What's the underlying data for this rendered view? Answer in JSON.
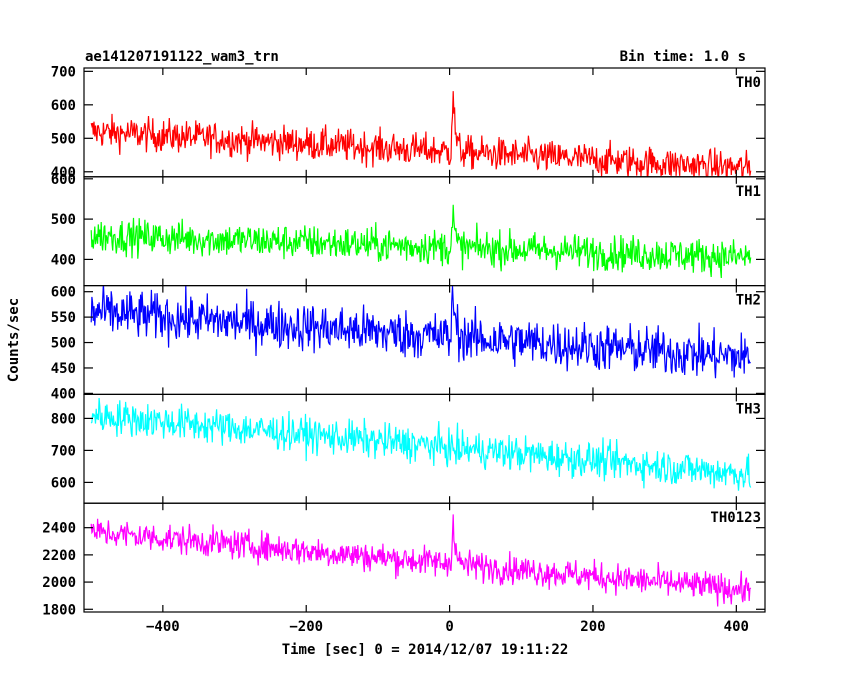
{
  "header": {
    "title": "ae141207191122_wam3_trn",
    "bin_time": "Bin time: 1.0 s"
  },
  "chart_data": {
    "type": "line",
    "title": "ae141207191122_wam3_trn",
    "subtitle": "Bin time: 1.0 s",
    "xlabel": "Time [sec] 0 = 2014/12/07 19:11:22",
    "ylabel": "Counts/sec",
    "xlim": [
      -510,
      440
    ],
    "x_ticks": [
      -400,
      -200,
      0,
      200,
      400
    ],
    "x_tick_labels": [
      "−400",
      "−200",
      "0",
      "200",
      "400"
    ],
    "x_range": [
      -500,
      420
    ],
    "grid": false,
    "panels": [
      {
        "name": "TH0",
        "color": "#ff0000",
        "ylim": [
          385,
          710
        ],
        "yticks": [
          400,
          500,
          600,
          700
        ],
        "start": 520,
        "end": 410,
        "noise": 25,
        "peak": 640,
        "peak_time": 5,
        "peak_width": 3
      },
      {
        "name": "TH1",
        "color": "#00ff00",
        "ylim": [
          335,
          605
        ],
        "yticks": [
          400,
          500,
          600
        ],
        "start": 460,
        "end": 405,
        "noise": 22,
        "peak": 510,
        "peak_time": 5,
        "peak_width": 3
      },
      {
        "name": "TH2",
        "color": "#0000ff",
        "ylim": [
          398,
          612
        ],
        "yticks": [
          400,
          450,
          500,
          550,
          600
        ],
        "start": 560,
        "end": 470,
        "noise": 24,
        "peak": 590,
        "peak_time": 5,
        "peak_width": 4
      },
      {
        "name": "TH3",
        "color": "#00ffff",
        "ylim": [
          535,
          875
        ],
        "yticks": [
          600,
          700,
          800
        ],
        "start": 810,
        "end": 625,
        "noise": 28,
        "peak": 700,
        "peak_time": 5,
        "peak_width": 6
      },
      {
        "name": "TH0123",
        "color": "#ff00ff",
        "ylim": [
          1780,
          2580
        ],
        "yticks": [
          1800,
          2000,
          2200,
          2400
        ],
        "start": 2370,
        "end": 1940,
        "noise": 55,
        "peak": 2480,
        "peak_time": 5,
        "peak_width": 3
      }
    ]
  }
}
